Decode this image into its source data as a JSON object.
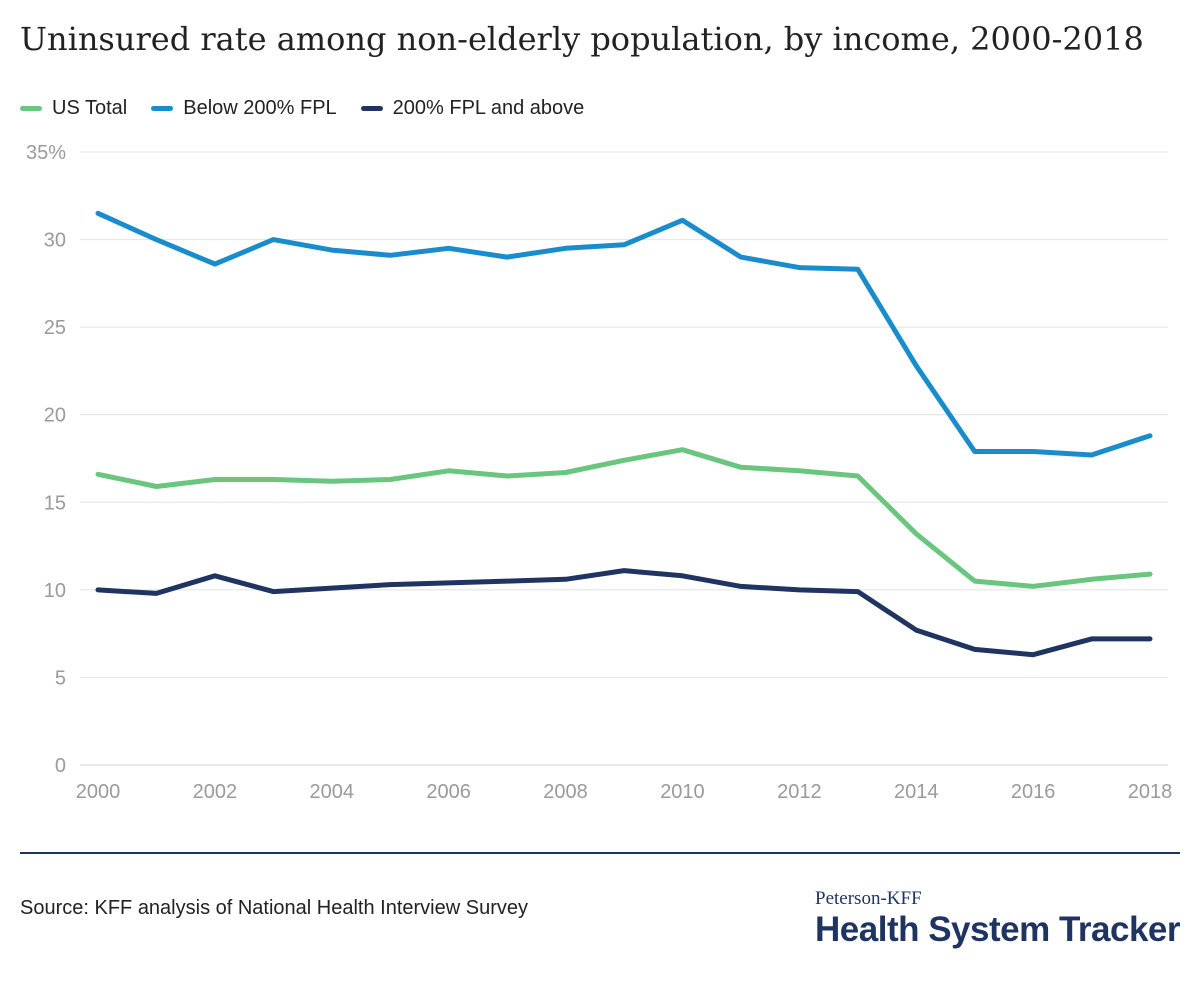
{
  "header": {
    "title": "Uninsured rate among non-elderly population, by income, 2000-2018"
  },
  "legend": [
    {
      "label": "US Total",
      "color": "#6ac57f"
    },
    {
      "label": "Below 200% FPL",
      "color": "#1b8ccb"
    },
    {
      "label": "200% FPL and above",
      "color": "#1f3461"
    }
  ],
  "footer": {
    "source": "Source: KFF analysis of National Health Interview Survey",
    "logo_top": "Peterson-KFF",
    "logo_main": "Health System Tracker"
  },
  "chart_data": {
    "type": "line",
    "title": "Uninsured rate among non-elderly population, by income, 2000-2018",
    "xlabel": "",
    "ylabel": "",
    "x": [
      2000,
      2001,
      2002,
      2003,
      2004,
      2005,
      2006,
      2007,
      2008,
      2009,
      2010,
      2011,
      2012,
      2013,
      2014,
      2015,
      2016,
      2017,
      2018
    ],
    "xticks": [
      "2000",
      "2002",
      "2004",
      "2006",
      "2008",
      "2010",
      "2012",
      "2014",
      "2016",
      "2018"
    ],
    "ylim": [
      0,
      35
    ],
    "yticks": [
      "0",
      "5",
      "10",
      "15",
      "20",
      "25",
      "30",
      "35%"
    ],
    "grid": true,
    "legend_position": "top-left",
    "series": [
      {
        "name": "US Total",
        "color": "#6ac57f",
        "values": [
          16.6,
          15.9,
          16.3,
          16.3,
          16.2,
          16.3,
          16.8,
          16.5,
          16.7,
          17.4,
          18.0,
          17.0,
          16.8,
          16.5,
          13.2,
          10.5,
          10.2,
          10.6,
          10.9
        ]
      },
      {
        "name": "Below 200% FPL",
        "color": "#1b8ccb",
        "values": [
          31.5,
          30.0,
          28.6,
          30.0,
          29.4,
          29.1,
          29.5,
          29.0,
          29.5,
          29.7,
          31.1,
          29.0,
          28.4,
          28.3,
          22.8,
          17.9,
          17.9,
          17.7,
          18.8
        ]
      },
      {
        "name": "200% FPL and above",
        "color": "#1f3461",
        "values": [
          10.0,
          9.8,
          10.8,
          9.9,
          10.1,
          10.3,
          10.4,
          10.5,
          10.6,
          11.1,
          10.8,
          10.2,
          10.0,
          9.9,
          7.7,
          6.6,
          6.3,
          7.2,
          7.2
        ]
      }
    ]
  }
}
